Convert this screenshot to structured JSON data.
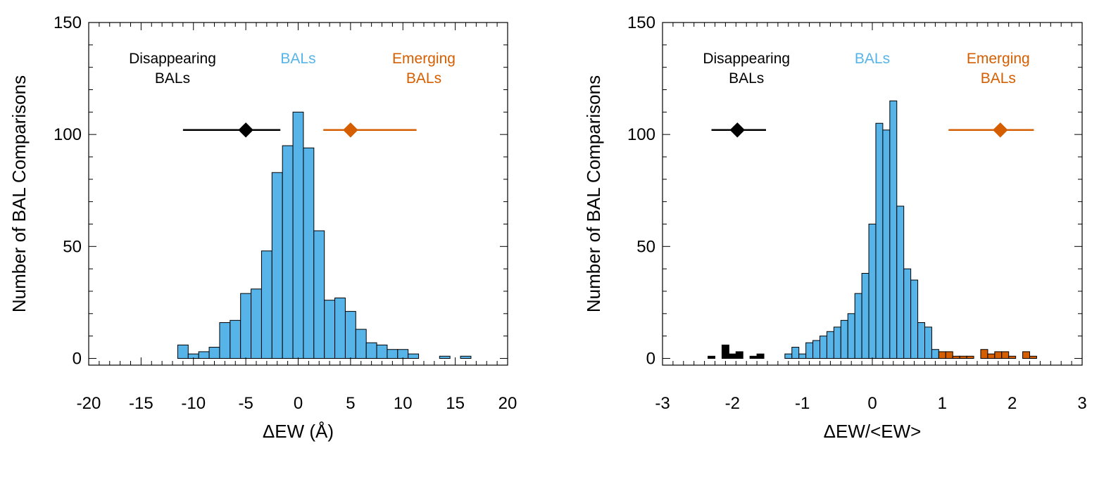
{
  "colors": {
    "bal": "#56b4e9",
    "emerging": "#d55e00",
    "disappearing": "#000000",
    "outline": "#000000"
  },
  "chart_data": [
    {
      "type": "bar",
      "xlabel": "ΔEW (Å)",
      "ylabel": "Number of BAL Comparisons",
      "xlim": [
        -20,
        20
      ],
      "ylim": [
        -3,
        150
      ],
      "xticks": [
        -20,
        -15,
        -10,
        -5,
        0,
        5,
        10,
        15,
        20
      ],
      "xtick_labels": [
        "-20",
        "-15",
        "-10",
        "-5",
        "0",
        "5",
        "10",
        "15",
        "20"
      ],
      "yticks": [
        0,
        50,
        100,
        150
      ],
      "ytick_labels": [
        "0",
        "50",
        "100",
        "150"
      ],
      "bin_width": 1,
      "bins": {
        "name": "BALs",
        "x": [
          -11,
          -10,
          -9,
          -8,
          -7,
          -6,
          -5,
          -4,
          -3,
          -2,
          -1,
          0,
          1,
          2,
          3,
          4,
          5,
          6,
          7,
          8,
          9,
          10,
          11,
          14,
          16
        ],
        "values": [
          6,
          2,
          3,
          5,
          16,
          17,
          29,
          31,
          48,
          83,
          95,
          110,
          94,
          57,
          26,
          27,
          21,
          13,
          7,
          6,
          4,
          4,
          2,
          1,
          1
        ]
      },
      "annotations": [
        {
          "lines": [
            "Disappearing",
            "BALs"
          ],
          "x": -12,
          "y": 138,
          "color": "disappearing"
        },
        {
          "lines": [
            "BALs"
          ],
          "x": 0,
          "y": 138,
          "color": "bal"
        },
        {
          "lines": [
            "Emerging",
            "BALs"
          ],
          "x": 12,
          "y": 138,
          "color": "emerging"
        }
      ],
      "summary_markers": [
        {
          "name": "Disappearing BALs",
          "center": -5,
          "range": [
            -11,
            -1.7
          ],
          "y": 102,
          "color": "disappearing"
        },
        {
          "name": "Emerging BALs",
          "center": 5,
          "range": [
            2.4,
            11.3
          ],
          "y": 102,
          "color": "emerging"
        }
      ]
    },
    {
      "type": "bar",
      "xlabel": "ΔEW/<EW>",
      "ylabel": "Number of BAL Comparisons",
      "xlim": [
        -3,
        3
      ],
      "ylim": [
        -3,
        150
      ],
      "xticks": [
        -3,
        -2,
        -1,
        0,
        1,
        2,
        3
      ],
      "xtick_labels": [
        "-3",
        "-2",
        "-1",
        "0",
        "1",
        "2",
        "3"
      ],
      "yticks": [
        0,
        50,
        100,
        150
      ],
      "ytick_labels": [
        "0",
        "50",
        "100",
        "150"
      ],
      "bin_width": 0.1,
      "bins": {
        "name": "BALs",
        "x": [
          -1.2,
          -1.1,
          -1.0,
          -0.9,
          -0.8,
          -0.7,
          -0.6,
          -0.5,
          -0.4,
          -0.3,
          -0.2,
          -0.1,
          0.0,
          0.1,
          0.2,
          0.3,
          0.4,
          0.5,
          0.6,
          0.7,
          0.8,
          0.9
        ],
        "values": [
          2,
          5,
          2,
          7,
          8,
          10,
          12,
          14,
          17,
          20,
          29,
          38,
          60,
          105,
          102,
          115,
          68,
          40,
          35,
          16,
          14,
          4
        ]
      },
      "bins_disappearing": {
        "name": "Disappearing BALs",
        "x": [
          -2.3,
          -2.1,
          -2.0,
          -1.9,
          -1.7,
          -1.6
        ],
        "values": [
          1,
          6,
          2,
          3,
          1,
          2
        ]
      },
      "bins_emerging": {
        "name": "Emerging BALs",
        "x": [
          1.0,
          1.1,
          1.2,
          1.3,
          1.4,
          1.6,
          1.7,
          1.8,
          1.9,
          2.0,
          2.2,
          2.3
        ],
        "values": [
          3,
          3,
          1,
          1,
          1,
          4,
          2,
          3,
          3,
          1,
          3,
          1
        ]
      },
      "annotations": [
        {
          "lines": [
            "Disappearing",
            "BALs"
          ],
          "x": -1.8,
          "y": 138,
          "color": "disappearing"
        },
        {
          "lines": [
            "BALs"
          ],
          "x": 0,
          "y": 138,
          "color": "bal"
        },
        {
          "lines": [
            "Emerging",
            "BALs"
          ],
          "x": 1.8,
          "y": 138,
          "color": "emerging"
        }
      ],
      "summary_markers": [
        {
          "name": "Disappearing BALs",
          "center": -1.93,
          "range": [
            -2.3,
            -1.52
          ],
          "y": 102,
          "color": "disappearing"
        },
        {
          "name": "Emerging BALs",
          "center": 1.83,
          "range": [
            1.09,
            2.31
          ],
          "y": 102,
          "color": "emerging"
        }
      ]
    }
  ]
}
